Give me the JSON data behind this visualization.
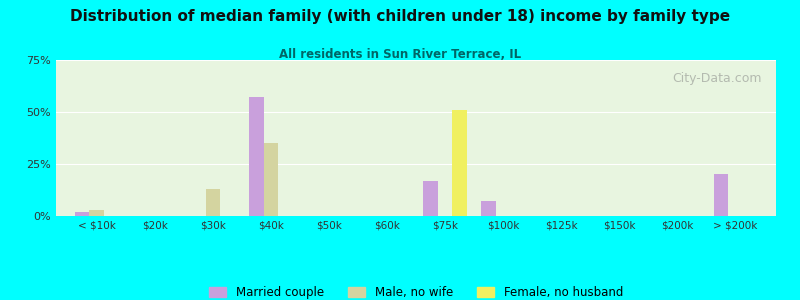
{
  "title": "Distribution of median family (with children under 18) income by family type",
  "subtitle": "All residents in Sun River Terrace, IL",
  "background_color": "#00FFFF",
  "categories": [
    "< $10k",
    "$20k",
    "$30k",
    "$40k",
    "$50k",
    "$60k",
    "$75k",
    "$100k",
    "$125k",
    "$150k",
    "$200k",
    "> $200k"
  ],
  "married_couple": [
    2,
    0,
    0,
    57,
    0,
    0,
    17,
    7,
    0,
    0,
    0,
    20
  ],
  "male_no_wife": [
    3,
    0,
    13,
    35,
    0,
    0,
    0,
    0,
    0,
    0,
    0,
    0
  ],
  "female_no_husband": [
    0,
    0,
    0,
    0,
    0,
    0,
    51,
    0,
    0,
    0,
    0,
    0
  ],
  "married_color": "#c9a0dc",
  "male_color": "#d4d4a0",
  "female_color": "#f0f060",
  "legend_labels": [
    "Married couple",
    "Male, no wife",
    "Female, no husband"
  ],
  "ylim": [
    0,
    75
  ],
  "yticks": [
    0,
    25,
    50,
    75
  ],
  "ytick_labels": [
    "0%",
    "25%",
    "50%",
    "75%"
  ],
  "watermark": "City-Data.com"
}
